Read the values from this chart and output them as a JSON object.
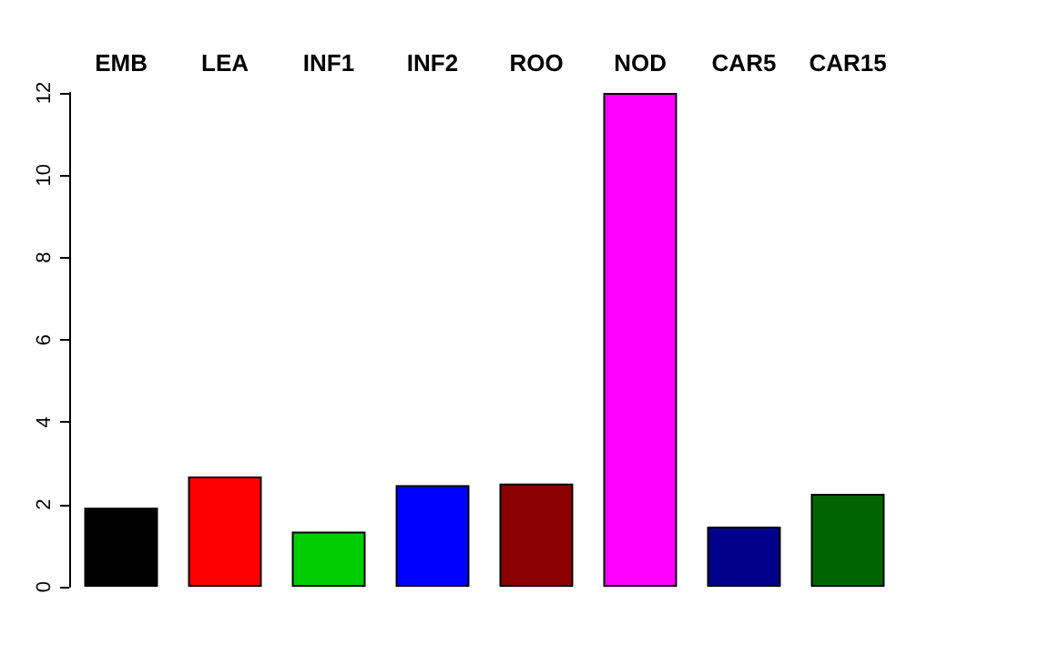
{
  "chart_data": {
    "type": "bar",
    "categories": [
      "EMB",
      "LEA",
      "INF1",
      "INF2",
      "ROO",
      "NOD",
      "CAR5",
      "CAR15"
    ],
    "values": [
      1.92,
      2.68,
      1.34,
      2.47,
      2.51,
      12.0,
      1.46,
      2.26
    ],
    "colors": [
      "#000000",
      "#ff0000",
      "#00cd00",
      "#0000ff",
      "#8b0000",
      "#ff00ff",
      "#00008b",
      "#006400"
    ],
    "ylim": [
      0,
      12
    ],
    "yticks": [
      0,
      2,
      4,
      6,
      8,
      10,
      12
    ],
    "grid": false
  }
}
